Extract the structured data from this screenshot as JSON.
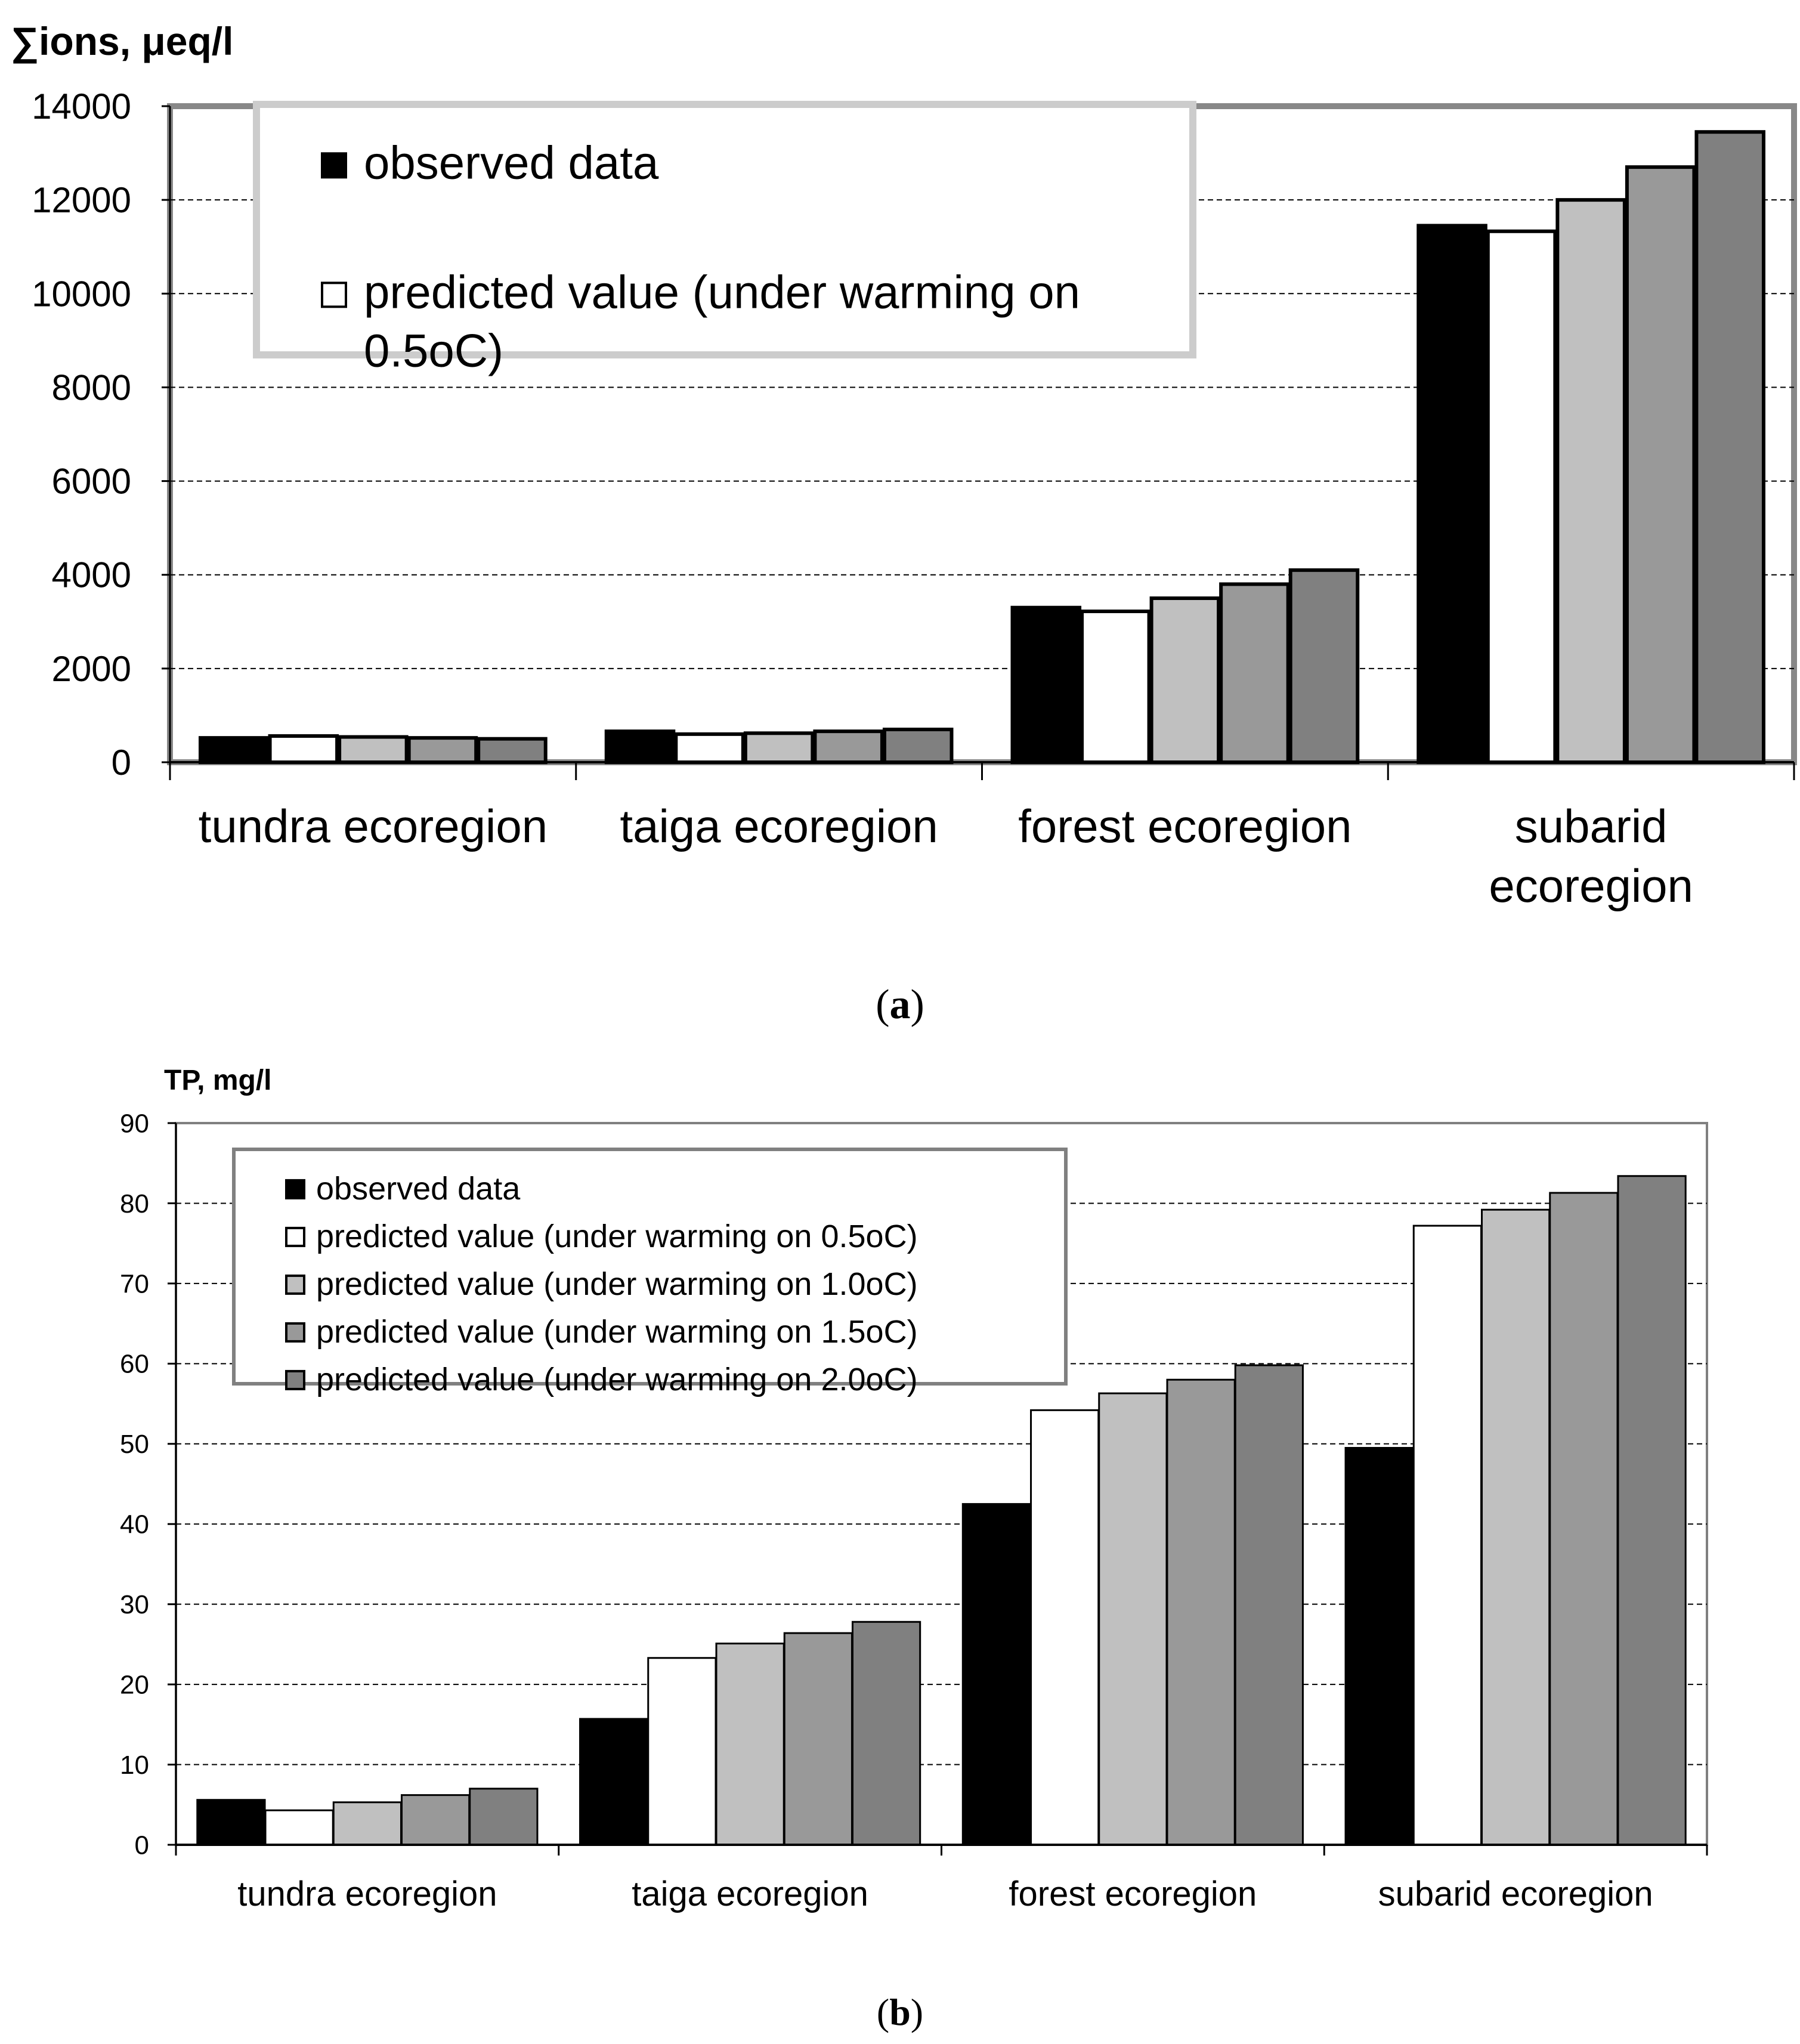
{
  "chart_data": [
    {
      "id": "a",
      "type": "bar",
      "panel_label": "a",
      "ylabel": "∑ions, μeq/l",
      "ylim": [
        0,
        14000
      ],
      "yticks": [
        0,
        2000,
        4000,
        6000,
        8000,
        10000,
        12000,
        14000
      ],
      "categories": [
        [
          "tundra ecoregion"
        ],
        [
          "taiga ecoregion"
        ],
        [
          "forest ecoregion"
        ],
        [
          "subarid",
          "ecoregion"
        ]
      ],
      "legend": [
        {
          "text": [
            "observed data"
          ],
          "color": "#000000"
        },
        {
          "text": [
            "predicted value (under warming on",
            "0.5oC)"
          ],
          "color": "#ffffff"
        }
      ],
      "series": [
        {
          "name": "observed data",
          "color": "#000000",
          "values": [
            520,
            660,
            3300,
            11450
          ]
        },
        {
          "name": "predicted value (under warming on 0.5oC)",
          "color": "#ffffff",
          "values": [
            560,
            600,
            3220,
            11330
          ]
        },
        {
          "name": "predicted value (under warming on 1.0oC)",
          "color": "#c0c0c0",
          "values": [
            540,
            620,
            3500,
            12000
          ]
        },
        {
          "name": "predicted value (under warming on 1.5oC)",
          "color": "#999999",
          "values": [
            520,
            660,
            3800,
            12700
          ]
        },
        {
          "name": "predicted value (under warming on 2.0oC)",
          "color": "#808080",
          "values": [
            500,
            700,
            4100,
            13450
          ]
        }
      ]
    },
    {
      "id": "b",
      "type": "bar",
      "panel_label": "b",
      "ylabel": "TP, mg/l",
      "ylim": [
        0,
        90
      ],
      "yticks": [
        0,
        10,
        20,
        30,
        40,
        50,
        60,
        70,
        80,
        90
      ],
      "categories": [
        [
          "tundra ecoregion"
        ],
        [
          "taiga ecoregion"
        ],
        [
          "forest ecoregion"
        ],
        [
          "subarid ecoregion"
        ]
      ],
      "legend": [
        {
          "text": [
            "observed data"
          ],
          "color": "#000000"
        },
        {
          "text": [
            "predicted value (under warming on 0.5oC)"
          ],
          "color": "#ffffff"
        },
        {
          "text": [
            "predicted value (under warming on 1.0oC)"
          ],
          "color": "#c0c0c0"
        },
        {
          "text": [
            "predicted value (under warming on 1.5oC)"
          ],
          "color": "#999999"
        },
        {
          "text": [
            "predicted value (under warming on 2.0oC)"
          ],
          "color": "#808080"
        }
      ],
      "series": [
        {
          "name": "observed data",
          "color": "#000000",
          "values": [
            5.6,
            15.7,
            42.5,
            49.5
          ]
        },
        {
          "name": "predicted value (under warming on 0.5oC)",
          "color": "#ffffff",
          "values": [
            4.3,
            23.3,
            54.2,
            77.2
          ]
        },
        {
          "name": "predicted value (under warming on 1.0oC)",
          "color": "#c0c0c0",
          "values": [
            5.3,
            25.1,
            56.3,
            79.2
          ]
        },
        {
          "name": "predicted value (under warming on 1.5oC)",
          "color": "#999999",
          "values": [
            6.2,
            26.4,
            58.0,
            81.3
          ]
        },
        {
          "name": "predicted value (under warming on 2.0oC)",
          "color": "#808080",
          "values": [
            7.0,
            27.8,
            59.8,
            83.4
          ]
        }
      ]
    }
  ]
}
